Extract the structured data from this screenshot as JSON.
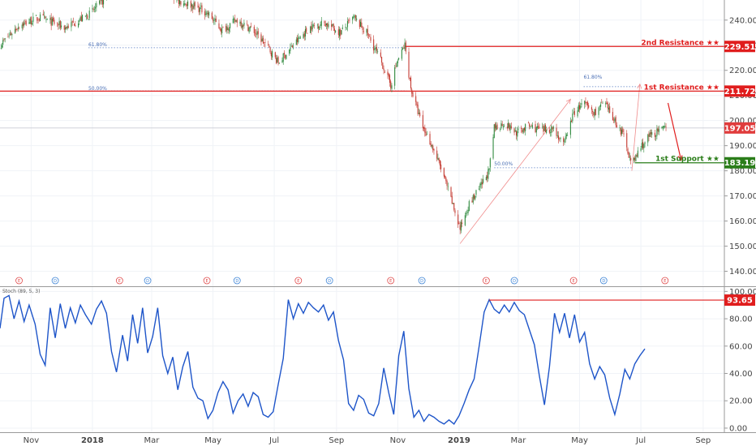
{
  "chart_data": [
    {
      "type": "candlestick",
      "ylim": [
        135,
        248
      ],
      "yticks": [
        "240.00",
        "230.00",
        "220.00",
        "210.00",
        "200.00",
        "190.00",
        "180.00",
        "170.00",
        "160.00",
        "150.00",
        "140.00"
      ],
      "xticks": [
        {
          "label": "Nov",
          "date": "2017-11-01"
        },
        {
          "label": "2018",
          "date": "2018-01-01"
        },
        {
          "label": "Mar",
          "date": "2018-03-01"
        },
        {
          "label": "May",
          "date": "2018-05-01"
        },
        {
          "label": "Jul",
          "date": "2018-07-01"
        },
        {
          "label": "Sep",
          "date": "2018-09-01"
        },
        {
          "label": "Nov",
          "date": "2018-11-01"
        },
        {
          "label": "2019",
          "date": "2019-01-01"
        },
        {
          "label": "Mar",
          "date": "2019-03-01"
        },
        {
          "label": "May",
          "date": "2019-05-01"
        },
        {
          "label": "Jul",
          "date": "2019-07-01"
        },
        {
          "label": "Sep",
          "date": "2019-09-01"
        }
      ],
      "price_path": [
        {
          "date": "2017-10-01",
          "price": 230
        },
        {
          "date": "2017-10-20",
          "price": 238
        },
        {
          "date": "2017-11-10",
          "price": 241
        },
        {
          "date": "2017-12-05",
          "price": 237
        },
        {
          "date": "2017-12-28",
          "price": 242
        },
        {
          "date": "2018-01-20",
          "price": 251
        },
        {
          "date": "2018-02-15",
          "price": 258
        },
        {
          "date": "2018-03-10",
          "price": 255
        },
        {
          "date": "2018-03-25",
          "price": 248
        },
        {
          "date": "2018-04-10",
          "price": 246
        },
        {
          "date": "2018-04-25",
          "price": 243
        },
        {
          "date": "2018-05-10",
          "price": 236
        },
        {
          "date": "2018-05-25",
          "price": 240
        },
        {
          "date": "2018-06-10",
          "price": 236
        },
        {
          "date": "2018-06-25",
          "price": 229
        },
        {
          "date": "2018-07-05",
          "price": 223
        },
        {
          "date": "2018-07-20",
          "price": 230
        },
        {
          "date": "2018-08-05",
          "price": 237
        },
        {
          "date": "2018-08-20",
          "price": 239
        },
        {
          "date": "2018-09-05",
          "price": 235
        },
        {
          "date": "2018-09-18",
          "price": 241
        },
        {
          "date": "2018-10-01",
          "price": 235
        },
        {
          "date": "2018-10-15",
          "price": 224
        },
        {
          "date": "2018-10-25",
          "price": 214
        },
        {
          "date": "2018-10-31",
          "price": 223
        },
        {
          "date": "2018-11-08",
          "price": 230
        },
        {
          "date": "2018-11-14",
          "price": 213
        },
        {
          "date": "2018-11-25",
          "price": 198
        },
        {
          "date": "2018-12-05",
          "price": 190
        },
        {
          "date": "2018-12-15",
          "price": 180
        },
        {
          "date": "2018-12-26",
          "price": 166
        },
        {
          "date": "2019-01-02",
          "price": 157
        },
        {
          "date": "2019-01-10",
          "price": 166
        },
        {
          "date": "2019-01-20",
          "price": 172
        },
        {
          "date": "2019-01-31",
          "price": 180
        },
        {
          "date": "2019-02-05",
          "price": 197
        },
        {
          "date": "2019-02-15",
          "price": 199
        },
        {
          "date": "2019-02-28",
          "price": 195
        },
        {
          "date": "2019-03-10",
          "price": 198
        },
        {
          "date": "2019-03-25",
          "price": 196
        },
        {
          "date": "2019-04-05",
          "price": 197
        },
        {
          "date": "2019-04-15",
          "price": 190
        },
        {
          "date": "2019-04-25",
          "price": 203
        },
        {
          "date": "2019-05-05",
          "price": 207
        },
        {
          "date": "2019-05-15",
          "price": 203
        },
        {
          "date": "2019-05-25",
          "price": 207
        },
        {
          "date": "2019-06-05",
          "price": 200
        },
        {
          "date": "2019-06-15",
          "price": 193
        },
        {
          "date": "2019-06-22",
          "price": 182
        },
        {
          "date": "2019-06-30",
          "price": 189
        },
        {
          "date": "2019-07-10",
          "price": 194
        },
        {
          "date": "2019-07-20",
          "price": 196
        },
        {
          "date": "2019-07-28",
          "price": 197
        }
      ],
      "levels": [
        {
          "name": "2nd Resistance ★★",
          "value": "229.51",
          "price": 229.51,
          "color": "#e01d1d"
        },
        {
          "name": "1st Resistance ★★",
          "value": "211.72",
          "price": 211.72,
          "color": "#e01d1d"
        },
        {
          "name": "1st Support ★★",
          "value": "183.19",
          "price": 183.19,
          "color": "#2a7d19"
        }
      ],
      "last_price": {
        "value": "197.05",
        "price": 197.05,
        "color": "#e03c3c"
      },
      "fib_labels": [
        {
          "text": "61.80%",
          "date": "2017-12-28",
          "price": 229
        },
        {
          "text": "50.00%",
          "date": "2017-12-28",
          "price": 211.5
        },
        {
          "text": "61.80%",
          "date": "2019-05-05",
          "price": 216
        },
        {
          "text": "50.00%",
          "date": "2019-02-05",
          "price": 181.5
        }
      ],
      "events": [
        {
          "label": "E",
          "date": "2017-10-20",
          "color": "#e04b4b"
        },
        {
          "label": "D",
          "date": "2017-11-25",
          "color": "#3d84d6"
        },
        {
          "label": "E",
          "date": "2018-01-28",
          "color": "#e04b4b"
        },
        {
          "label": "D",
          "date": "2018-02-25",
          "color": "#3d84d6"
        },
        {
          "label": "E",
          "date": "2018-04-25",
          "color": "#e04b4b"
        },
        {
          "label": "D",
          "date": "2018-05-25",
          "color": "#3d84d6"
        },
        {
          "label": "E",
          "date": "2018-07-25",
          "color": "#e04b4b"
        },
        {
          "label": "D",
          "date": "2018-08-25",
          "color": "#3d84d6"
        },
        {
          "label": "E",
          "date": "2018-10-25",
          "color": "#e04b4b"
        },
        {
          "label": "D",
          "date": "2018-11-25",
          "color": "#3d84d6"
        },
        {
          "label": "E",
          "date": "2019-01-28",
          "color": "#e04b4b"
        },
        {
          "label": "D",
          "date": "2019-02-25",
          "color": "#3d84d6"
        },
        {
          "label": "E",
          "date": "2019-04-25",
          "color": "#e04b4b"
        },
        {
          "label": "D",
          "date": "2019-05-25",
          "color": "#3d84d6"
        },
        {
          "label": "E",
          "date": "2019-07-25",
          "color": "#e04b4b"
        }
      ]
    },
    {
      "type": "line",
      "title": "Stoch (89, 5, 3)",
      "ylim": [
        -3,
        102
      ],
      "yticks": [
        "100.00",
        "80.00",
        "60.00",
        "40.00",
        "20.00",
        "0.00"
      ],
      "last_value": {
        "value": "93.65",
        "level": 93.65,
        "color": "#e01d1d"
      },
      "series": [
        {
          "values": [
            {
              "date": "2017-10-01",
              "v": 73
            },
            {
              "date": "2017-10-05",
              "v": 95
            },
            {
              "date": "2017-10-10",
              "v": 97
            },
            {
              "date": "2017-10-15",
              "v": 80
            },
            {
              "date": "2017-10-20",
              "v": 93
            },
            {
              "date": "2017-10-25",
              "v": 78
            },
            {
              "date": "2017-10-30",
              "v": 90
            },
            {
              "date": "2017-11-05",
              "v": 76
            },
            {
              "date": "2017-11-10",
              "v": 54
            },
            {
              "date": "2017-11-15",
              "v": 46
            },
            {
              "date": "2017-11-20",
              "v": 88
            },
            {
              "date": "2017-11-25",
              "v": 66
            },
            {
              "date": "2017-11-30",
              "v": 91
            },
            {
              "date": "2017-12-05",
              "v": 73
            },
            {
              "date": "2017-12-10",
              "v": 88
            },
            {
              "date": "2017-12-15",
              "v": 77
            },
            {
              "date": "2017-12-20",
              "v": 90
            },
            {
              "date": "2017-12-25",
              "v": 83
            },
            {
              "date": "2017-12-31",
              "v": 76
            },
            {
              "date": "2018-01-05",
              "v": 87
            },
            {
              "date": "2018-01-10",
              "v": 93
            },
            {
              "date": "2018-01-15",
              "v": 84
            },
            {
              "date": "2018-01-20",
              "v": 56
            },
            {
              "date": "2018-01-25",
              "v": 41
            },
            {
              "date": "2018-01-31",
              "v": 68
            },
            {
              "date": "2018-02-05",
              "v": 49
            },
            {
              "date": "2018-02-10",
              "v": 83
            },
            {
              "date": "2018-02-15",
              "v": 62
            },
            {
              "date": "2018-02-20",
              "v": 88
            },
            {
              "date": "2018-02-25",
              "v": 55
            },
            {
              "date": "2018-03-02",
              "v": 67
            },
            {
              "date": "2018-03-07",
              "v": 88
            },
            {
              "date": "2018-03-12",
              "v": 53
            },
            {
              "date": "2018-03-17",
              "v": 40
            },
            {
              "date": "2018-03-22",
              "v": 52
            },
            {
              "date": "2018-03-27",
              "v": 28
            },
            {
              "date": "2018-04-01",
              "v": 45
            },
            {
              "date": "2018-04-06",
              "v": 56
            },
            {
              "date": "2018-04-11",
              "v": 30
            },
            {
              "date": "2018-04-16",
              "v": 22
            },
            {
              "date": "2018-04-21",
              "v": 20
            },
            {
              "date": "2018-04-26",
              "v": 7
            },
            {
              "date": "2018-05-01",
              "v": 13
            },
            {
              "date": "2018-05-06",
              "v": 26
            },
            {
              "date": "2018-05-11",
              "v": 34
            },
            {
              "date": "2018-05-16",
              "v": 28
            },
            {
              "date": "2018-05-21",
              "v": 11
            },
            {
              "date": "2018-05-26",
              "v": 20
            },
            {
              "date": "2018-05-31",
              "v": 25
            },
            {
              "date": "2018-06-05",
              "v": 16
            },
            {
              "date": "2018-06-10",
              "v": 26
            },
            {
              "date": "2018-06-15",
              "v": 23
            },
            {
              "date": "2018-06-20",
              "v": 10
            },
            {
              "date": "2018-06-25",
              "v": 8
            },
            {
              "date": "2018-06-30",
              "v": 12
            },
            {
              "date": "2018-07-05",
              "v": 32
            },
            {
              "date": "2018-07-10",
              "v": 51
            },
            {
              "date": "2018-07-15",
              "v": 94
            },
            {
              "date": "2018-07-20",
              "v": 80
            },
            {
              "date": "2018-07-25",
              "v": 91
            },
            {
              "date": "2018-07-30",
              "v": 84
            },
            {
              "date": "2018-08-04",
              "v": 92
            },
            {
              "date": "2018-08-09",
              "v": 88
            },
            {
              "date": "2018-08-14",
              "v": 85
            },
            {
              "date": "2018-08-19",
              "v": 90
            },
            {
              "date": "2018-08-24",
              "v": 79
            },
            {
              "date": "2018-08-29",
              "v": 85
            },
            {
              "date": "2018-09-03",
              "v": 64
            },
            {
              "date": "2018-09-08",
              "v": 50
            },
            {
              "date": "2018-09-13",
              "v": 18
            },
            {
              "date": "2018-09-18",
              "v": 13
            },
            {
              "date": "2018-09-23",
              "v": 24
            },
            {
              "date": "2018-09-28",
              "v": 21
            },
            {
              "date": "2018-10-03",
              "v": 11
            },
            {
              "date": "2018-10-08",
              "v": 9
            },
            {
              "date": "2018-10-13",
              "v": 18
            },
            {
              "date": "2018-10-18",
              "v": 44
            },
            {
              "date": "2018-10-23",
              "v": 26
            },
            {
              "date": "2018-10-28",
              "v": 10
            },
            {
              "date": "2018-11-02",
              "v": 53
            },
            {
              "date": "2018-11-07",
              "v": 71
            },
            {
              "date": "2018-11-12",
              "v": 29
            },
            {
              "date": "2018-11-17",
              "v": 8
            },
            {
              "date": "2018-11-22",
              "v": 13
            },
            {
              "date": "2018-11-27",
              "v": 5
            },
            {
              "date": "2018-12-02",
              "v": 10
            },
            {
              "date": "2018-12-07",
              "v": 8
            },
            {
              "date": "2018-12-12",
              "v": 5
            },
            {
              "date": "2018-12-17",
              "v": 3
            },
            {
              "date": "2018-12-22",
              "v": 6
            },
            {
              "date": "2018-12-27",
              "v": 3
            },
            {
              "date": "2019-01-01",
              "v": 9
            },
            {
              "date": "2019-01-06",
              "v": 18
            },
            {
              "date": "2019-01-11",
              "v": 28
            },
            {
              "date": "2019-01-16",
              "v": 36
            },
            {
              "date": "2019-01-21",
              "v": 60
            },
            {
              "date": "2019-01-26",
              "v": 85
            },
            {
              "date": "2019-01-31",
              "v": 94
            },
            {
              "date": "2019-02-05",
              "v": 87
            },
            {
              "date": "2019-02-10",
              "v": 84
            },
            {
              "date": "2019-02-15",
              "v": 90
            },
            {
              "date": "2019-02-20",
              "v": 85
            },
            {
              "date": "2019-02-25",
              "v": 92
            },
            {
              "date": "2019-03-02",
              "v": 86
            },
            {
              "date": "2019-03-07",
              "v": 83
            },
            {
              "date": "2019-03-12",
              "v": 72
            },
            {
              "date": "2019-03-17",
              "v": 61
            },
            {
              "date": "2019-03-22",
              "v": 38
            },
            {
              "date": "2019-03-27",
              "v": 17
            },
            {
              "date": "2019-04-01",
              "v": 45
            },
            {
              "date": "2019-04-06",
              "v": 84
            },
            {
              "date": "2019-04-11",
              "v": 70
            },
            {
              "date": "2019-04-16",
              "v": 84
            },
            {
              "date": "2019-04-21",
              "v": 66
            },
            {
              "date": "2019-04-26",
              "v": 83
            },
            {
              "date": "2019-05-01",
              "v": 63
            },
            {
              "date": "2019-05-06",
              "v": 70
            },
            {
              "date": "2019-05-11",
              "v": 47
            },
            {
              "date": "2019-05-16",
              "v": 36
            },
            {
              "date": "2019-05-21",
              "v": 45
            },
            {
              "date": "2019-05-26",
              "v": 39
            },
            {
              "date": "2019-05-31",
              "v": 22
            },
            {
              "date": "2019-06-05",
              "v": 10
            },
            {
              "date": "2019-06-10",
              "v": 25
            },
            {
              "date": "2019-06-15",
              "v": 43
            },
            {
              "date": "2019-06-20",
              "v": 36
            },
            {
              "date": "2019-06-25",
              "v": 47
            },
            {
              "date": "2019-06-30",
              "v": 53
            },
            {
              "date": "2019-07-05",
              "v": 58
            }
          ]
        }
      ]
    }
  ]
}
